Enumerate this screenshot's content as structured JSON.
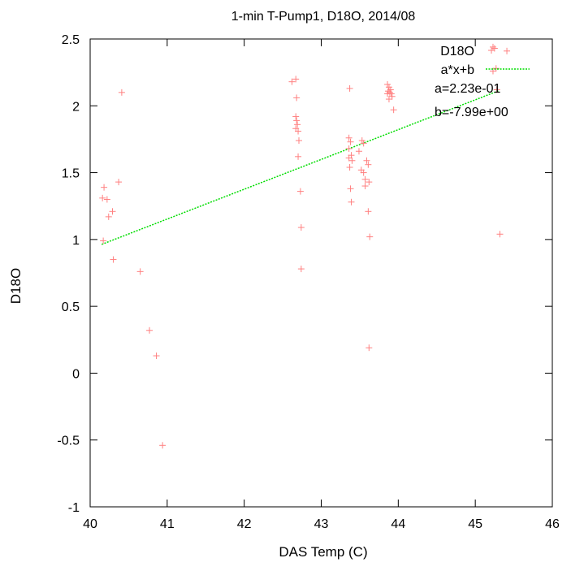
{
  "chart_data": {
    "type": "scatter",
    "title": "1-min T-Pump1, D18O, 2014/08",
    "xlabel": "DAS Temp (C)",
    "ylabel": "D18O",
    "xlim": [
      40,
      46
    ],
    "ylim": [
      -1,
      2.5
    ],
    "xticks": [
      "40",
      "41",
      "42",
      "43",
      "44",
      "45",
      "46"
    ],
    "yticks": [
      "-1",
      "-0.5",
      "0",
      "0.5",
      "1",
      "1.5",
      "2",
      "2.5"
    ],
    "grid": false,
    "legend_position": "top-right",
    "colors": {
      "points": "#ff8080",
      "fit": "#00dd00"
    },
    "series": [
      {
        "name": "D18O",
        "marker": "plus",
        "points": [
          [
            40.18,
            1.39
          ],
          [
            40.16,
            1.31
          ],
          [
            40.22,
            1.3
          ],
          [
            40.24,
            1.17
          ],
          [
            40.29,
            1.21
          ],
          [
            40.37,
            1.43
          ],
          [
            40.17,
            0.99
          ],
          [
            40.3,
            0.85
          ],
          [
            40.41,
            2.1
          ],
          [
            40.65,
            0.76
          ],
          [
            40.77,
            0.32
          ],
          [
            40.86,
            0.13
          ],
          [
            40.94,
            -0.54
          ],
          [
            42.62,
            2.18
          ],
          [
            42.67,
            2.2
          ],
          [
            42.68,
            2.06
          ],
          [
            42.67,
            1.92
          ],
          [
            42.68,
            1.89
          ],
          [
            42.69,
            1.86
          ],
          [
            42.67,
            1.83
          ],
          [
            42.7,
            1.81
          ],
          [
            42.71,
            1.74
          ],
          [
            42.7,
            1.62
          ],
          [
            42.73,
            1.36
          ],
          [
            42.74,
            1.09
          ],
          [
            42.74,
            0.78
          ],
          [
            43.37,
            2.13
          ],
          [
            43.36,
            1.76
          ],
          [
            43.38,
            1.73
          ],
          [
            43.36,
            1.68
          ],
          [
            43.39,
            1.63
          ],
          [
            43.36,
            1.61
          ],
          [
            43.4,
            1.59
          ],
          [
            43.37,
            1.54
          ],
          [
            43.38,
            1.38
          ],
          [
            43.39,
            1.28
          ],
          [
            43.49,
            1.66
          ],
          [
            43.53,
            1.74
          ],
          [
            43.55,
            1.72
          ],
          [
            43.52,
            1.52
          ],
          [
            43.55,
            1.5
          ],
          [
            43.57,
            1.45
          ],
          [
            43.57,
            1.4
          ],
          [
            43.59,
            1.59
          ],
          [
            43.61,
            1.56
          ],
          [
            43.62,
            1.43
          ],
          [
            43.61,
            1.21
          ],
          [
            43.63,
            1.02
          ],
          [
            43.62,
            0.19
          ],
          [
            43.86,
            2.16
          ],
          [
            43.88,
            2.14
          ],
          [
            43.9,
            2.12
          ],
          [
            43.87,
            2.11
          ],
          [
            43.89,
            2.1
          ],
          [
            43.91,
            2.09
          ],
          [
            43.86,
            2.09
          ],
          [
            43.92,
            2.07
          ],
          [
            43.88,
            2.05
          ],
          [
            43.94,
            1.97
          ],
          [
            45.23,
            2.44
          ],
          [
            45.25,
            2.43
          ],
          [
            45.41,
            2.41
          ],
          [
            45.27,
            2.28
          ],
          [
            45.23,
            2.26
          ],
          [
            45.28,
            2.12
          ],
          [
            45.32,
            1.04
          ]
        ]
      },
      {
        "name": "a*x+b",
        "type": "line",
        "x": [
          40.15,
          45.3
        ],
        "a": 0.223,
        "b": -7.99
      }
    ],
    "annotations": [
      "a=2.23e-01",
      "b=-7.99e+00"
    ]
  }
}
